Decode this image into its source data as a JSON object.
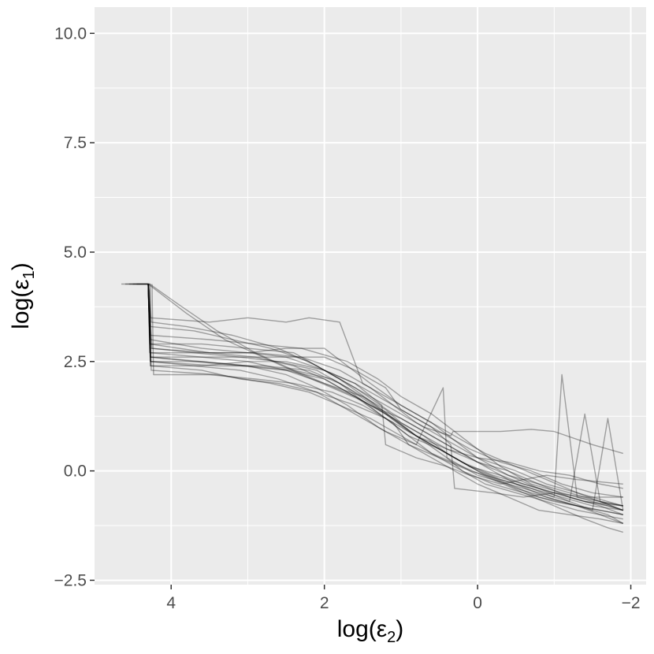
{
  "chart_data": {
    "type": "line",
    "title": "",
    "xlabel": {
      "main": "log(ε",
      "sub": "2",
      "close": ")"
    },
    "ylabel": {
      "main": "log(ε",
      "sub": "1",
      "close": ")"
    },
    "xlim": [
      5.0,
      -2.2
    ],
    "ylim": [
      -2.6,
      10.6
    ],
    "x_reversed": true,
    "x_major_ticks": [
      4,
      2,
      0,
      -2
    ],
    "x_tick_labels": [
      "4",
      "2",
      "0",
      "−2"
    ],
    "x_minor_ticks": [
      3,
      1,
      -1
    ],
    "y_major_ticks": [
      10.0,
      7.5,
      5.0,
      2.5,
      0.0,
      -2.5
    ],
    "y_tick_labels": [
      "10.0",
      "7.5",
      "5.0",
      "2.5",
      "0.0",
      "−2.5"
    ],
    "y_minor_ticks": [
      8.75,
      6.25,
      3.75,
      1.25,
      -1.25
    ],
    "grid": true,
    "panel_background": "#ebebeb",
    "line_color": "#000000",
    "series": [
      {
        "x": [
          4.65,
          4.3,
          4.28,
          3.5,
          2.9,
          2.4,
          2.0,
          1.6,
          1.2,
          0.8,
          0.4,
          0.0,
          -0.4,
          -0.8,
          -1.2,
          -1.6,
          -1.9
        ],
        "y": [
          4.27,
          4.27,
          2.9,
          2.7,
          2.6,
          2.4,
          2.1,
          1.7,
          1.2,
          0.8,
          0.5,
          0.3,
          0.2,
          0.0,
          -0.1,
          -0.3,
          -0.4
        ]
      },
      {
        "x": [
          4.6,
          4.3,
          4.27,
          3.6,
          3.0,
          2.5,
          2.1,
          1.7,
          1.3,
          0.9,
          0.5,
          0.1,
          -0.3,
          -0.7,
          -1.1,
          -1.5,
          -1.9
        ],
        "y": [
          4.27,
          4.27,
          2.6,
          2.5,
          2.4,
          2.2,
          1.9,
          1.5,
          1.0,
          0.6,
          0.3,
          0.0,
          -0.2,
          -0.4,
          -0.6,
          -0.8,
          -0.9
        ]
      },
      {
        "x": [
          4.55,
          4.28,
          4.26,
          3.8,
          3.2,
          2.6,
          2.1,
          1.6,
          1.1,
          0.7,
          0.3,
          0.0,
          -0.4,
          -0.8,
          -1.2,
          -1.6,
          -1.9
        ],
        "y": [
          4.27,
          4.27,
          3.4,
          3.3,
          3.1,
          2.8,
          2.4,
          1.9,
          1.3,
          0.9,
          0.5,
          0.2,
          0.0,
          -0.3,
          -0.5,
          -0.7,
          -0.8
        ]
      },
      {
        "x": [
          4.5,
          4.3,
          4.25,
          3.7,
          3.1,
          2.6,
          2.1,
          1.7,
          1.2,
          0.8,
          0.4,
          0.0,
          -0.4,
          -0.8,
          -1.3,
          -1.7,
          -1.9
        ],
        "y": [
          4.27,
          4.27,
          2.8,
          2.7,
          2.6,
          2.5,
          2.3,
          1.9,
          1.3,
          0.8,
          0.3,
          -0.1,
          -0.3,
          -0.6,
          -0.8,
          -1.0,
          -1.2
        ]
      },
      {
        "x": [
          4.45,
          4.28,
          4.26,
          3.4,
          2.7,
          2.2,
          1.8,
          1.4,
          1.0,
          0.6,
          0.2,
          -0.2,
          -0.6,
          -1.0,
          -1.4,
          -1.7,
          -1.9
        ],
        "y": [
          4.27,
          4.27,
          2.3,
          2.2,
          2.0,
          1.8,
          1.5,
          1.2,
          0.8,
          0.4,
          0.1,
          -0.2,
          -0.5,
          -0.8,
          -1.1,
          -1.3,
          -1.4
        ]
      },
      {
        "x": [
          4.3,
          4.27,
          3.5,
          3.0,
          2.5,
          2.2,
          1.8,
          1.5,
          1.1,
          0.7,
          0.3,
          -0.1,
          -0.5,
          -0.9,
          -1.3,
          -1.6,
          -1.9
        ],
        "y": [
          4.27,
          3.5,
          3.4,
          3.5,
          3.4,
          3.5,
          3.4,
          2.0,
          1.6,
          1.2,
          0.8,
          0.4,
          0.1,
          -0.2,
          -0.5,
          -0.7,
          -0.9
        ]
      },
      {
        "x": [
          4.3,
          4.27,
          3.5,
          3.0,
          2.4,
          2.0,
          1.6,
          1.2,
          1.0,
          0.6,
          0.35,
          0.3,
          -0.2,
          -0.6,
          -1.0,
          -1.4,
          -1.9
        ],
        "y": [
          4.27,
          2.6,
          2.6,
          2.6,
          2.6,
          2.6,
          2.3,
          1.9,
          1.4,
          1.0,
          0.6,
          -0.4,
          -0.5,
          -0.6,
          -0.5,
          -0.6,
          -0.6
        ]
      },
      {
        "x": [
          4.3,
          4.27,
          3.6,
          3.0,
          2.5,
          2.0,
          1.6,
          1.3,
          1.0,
          0.7,
          0.4,
          0.1,
          -0.3,
          -0.7,
          -1.1,
          -1.5,
          -1.9
        ],
        "y": [
          4.27,
          3.0,
          2.8,
          2.7,
          2.6,
          2.3,
          2.0,
          1.7,
          1.4,
          1.1,
          0.8,
          0.5,
          0.2,
          0.0,
          -0.3,
          -0.5,
          -0.6
        ]
      },
      {
        "x": [
          4.25,
          4.23,
          3.5,
          2.9,
          2.4,
          1.9,
          1.5,
          1.1,
          0.9,
          0.6,
          0.3,
          0.0,
          -0.4,
          -0.8,
          -1.2,
          -1.6,
          -1.9
        ],
        "y": [
          4.27,
          2.2,
          2.2,
          2.1,
          2.0,
          1.8,
          1.5,
          1.1,
          0.6,
          0.3,
          0.0,
          -0.3,
          -0.6,
          -0.9,
          -1.0,
          -1.1,
          -1.2
        ]
      },
      {
        "x": [
          4.3,
          3.8,
          3.3,
          2.8,
          2.3,
          1.9,
          1.5,
          1.1,
          0.8,
          0.5,
          0.2,
          -0.2,
          -0.6,
          -1.0,
          -1.4,
          -1.7,
          -1.9
        ],
        "y": [
          4.27,
          3.6,
          3.0,
          2.6,
          2.2,
          1.9,
          1.6,
          1.2,
          0.8,
          0.5,
          0.2,
          -0.1,
          -0.3,
          -0.5,
          -0.7,
          -0.8,
          -0.9
        ]
      },
      {
        "x": [
          4.3,
          4.27,
          3.6,
          3.0,
          2.5,
          2.0,
          1.6,
          1.25,
          1.2,
          0.8,
          0.4,
          0.1,
          -0.3,
          -0.6,
          -0.9,
          -1.3,
          -1.9
        ],
        "y": [
          4.27,
          2.4,
          2.4,
          2.5,
          2.5,
          2.3,
          2.0,
          1.5,
          0.6,
          0.3,
          0.1,
          -0.1,
          -0.3,
          -0.2,
          -0.1,
          -0.2,
          -0.3
        ]
      },
      {
        "x": [
          4.3,
          4.27,
          3.6,
          3.0,
          2.5,
          2.0,
          1.7,
          1.4,
          1.0,
          0.6,
          0.3,
          0.0,
          -0.5,
          -0.9,
          -1.3,
          -1.7,
          -1.9
        ],
        "y": [
          4.27,
          2.7,
          2.7,
          2.7,
          2.8,
          2.8,
          2.4,
          2.0,
          1.5,
          1.1,
          0.7,
          0.3,
          0.0,
          -0.3,
          -0.5,
          -0.7,
          -0.8
        ]
      },
      {
        "x": [
          4.3,
          4.27,
          3.7,
          3.1,
          2.6,
          2.1,
          1.8,
          1.5,
          1.2,
          0.8,
          0.45,
          0.4,
          0.2,
          -0.2,
          -0.6,
          -1.0,
          -1.9
        ],
        "y": [
          4.27,
          2.5,
          2.4,
          2.3,
          2.1,
          1.8,
          1.5,
          1.2,
          0.9,
          0.6,
          1.9,
          0.3,
          0.0,
          -0.3,
          -0.5,
          -0.7,
          -1.0
        ]
      },
      {
        "x": [
          4.3,
          4.27,
          3.6,
          3.0,
          2.4,
          1.9,
          1.5,
          1.1,
          0.7,
          0.35,
          0.32,
          -0.3,
          -0.7,
          -1.0,
          -1.5,
          -1.9
        ],
        "y": [
          4.27,
          2.9,
          2.9,
          2.8,
          2.7,
          2.2,
          1.8,
          1.4,
          1.0,
          0.8,
          0.9,
          0.9,
          0.95,
          0.9,
          0.6,
          0.4
        ]
      },
      {
        "x": [
          4.3,
          4.27,
          3.7,
          3.1,
          2.5,
          2.0,
          1.7,
          1.4,
          1.0,
          0.7,
          0.4,
          0.1,
          -0.2,
          -0.5,
          -0.9,
          -1.3,
          -1.9
        ],
        "y": [
          4.27,
          2.6,
          2.5,
          2.4,
          2.3,
          2.1,
          1.8,
          1.5,
          1.2,
          0.9,
          0.6,
          0.3,
          0.0,
          -0.3,
          -0.6,
          -0.8,
          -1.0
        ]
      },
      {
        "x": [
          4.3,
          4.27,
          3.5,
          2.9,
          2.3,
          1.7,
          1.3,
          1.0,
          0.6,
          0.3,
          0.0,
          -0.3,
          -0.7,
          -1.1,
          -1.5,
          -1.7,
          -1.9
        ],
        "y": [
          4.27,
          3.1,
          3.0,
          2.9,
          2.8,
          2.5,
          2.1,
          1.7,
          1.3,
          0.9,
          0.5,
          0.1,
          -0.3,
          -0.5,
          -0.7,
          -0.8,
          -0.9
        ]
      },
      {
        "x": [
          4.28,
          3.9,
          3.4,
          2.9,
          2.4,
          2.0,
          1.6,
          1.2,
          0.9,
          0.5,
          0.2,
          -0.1,
          -0.5,
          -0.9,
          -1.3,
          -1.6,
          -1.9
        ],
        "y": [
          4.27,
          3.8,
          3.2,
          2.7,
          2.3,
          2.0,
          1.7,
          1.3,
          0.9,
          0.5,
          0.2,
          -0.1,
          -0.4,
          -0.6,
          -0.8,
          -1.0,
          -1.2
        ]
      },
      {
        "x": [
          4.3,
          4.28,
          3.6,
          3.0,
          2.5,
          2.0,
          1.5,
          1.2,
          1.0,
          0.7,
          0.4,
          0.0,
          -0.4,
          -0.8,
          -1.2,
          -1.6,
          -1.9
        ],
        "y": [
          4.27,
          2.7,
          2.6,
          2.5,
          2.3,
          2.0,
          1.7,
          1.4,
          1.1,
          0.8,
          0.5,
          0.2,
          -0.1,
          -0.3,
          -0.6,
          -0.8,
          -1.0
        ]
      },
      {
        "x": [
          4.3,
          4.27,
          3.4,
          2.8,
          2.2,
          1.8,
          1.5,
          1.2,
          0.9,
          0.5,
          0.1,
          -0.3,
          -0.7,
          -1.0,
          -1.1,
          -1.3,
          -1.9
        ],
        "y": [
          4.27,
          2.5,
          2.4,
          2.4,
          2.3,
          2.0,
          1.6,
          1.2,
          0.8,
          0.5,
          0.1,
          -0.2,
          -0.4,
          -0.6,
          2.2,
          -0.6,
          -0.8
        ]
      },
      {
        "x": [
          4.3,
          4.27,
          3.5,
          2.9,
          2.3,
          1.8,
          1.4,
          1.1,
          0.8,
          0.4,
          0.0,
          -0.4,
          -0.8,
          -1.2,
          -1.5,
          -1.7,
          -1.9
        ],
        "y": [
          4.27,
          2.8,
          2.7,
          2.7,
          2.6,
          2.3,
          1.9,
          1.5,
          1.1,
          0.7,
          0.3,
          -0.1,
          -0.4,
          -0.7,
          -0.9,
          1.2,
          -0.9
        ]
      },
      {
        "x": [
          4.3,
          4.27,
          3.6,
          3.1,
          2.6,
          2.1,
          1.6,
          1.2,
          0.9,
          0.6,
          0.2,
          -0.1,
          -0.5,
          -0.9,
          -1.3,
          -1.6,
          -1.9
        ],
        "y": [
          4.27,
          2.4,
          2.3,
          2.1,
          2.0,
          1.8,
          1.5,
          1.2,
          0.8,
          0.4,
          0.0,
          -0.3,
          -0.5,
          -0.7,
          -0.9,
          -1.0,
          -1.1
        ]
      },
      {
        "x": [
          4.3,
          4.27,
          3.7,
          3.2,
          2.7,
          2.2,
          1.8,
          1.4,
          1.1,
          0.7,
          0.4,
          0.1,
          -0.3,
          -0.6,
          -1.0,
          -1.4,
          -1.9
        ],
        "y": [
          4.27,
          3.3,
          3.2,
          3.0,
          2.8,
          2.5,
          2.1,
          1.6,
          1.2,
          0.8,
          0.4,
          0.1,
          -0.1,
          -0.3,
          -0.5,
          -0.7,
          -0.8
        ]
      },
      {
        "x": [
          4.3,
          4.27,
          3.6,
          3.0,
          2.4,
          1.9,
          1.5,
          1.1,
          0.8,
          0.4,
          0.0,
          -0.4,
          -0.8,
          -1.2,
          -1.4,
          -1.6,
          -1.9
        ],
        "y": [
          4.27,
          2.5,
          2.5,
          2.4,
          2.3,
          2.1,
          1.7,
          1.2,
          0.8,
          0.4,
          0.0,
          -0.3,
          -0.5,
          -0.7,
          1.3,
          -0.7,
          -0.9
        ]
      }
    ]
  }
}
